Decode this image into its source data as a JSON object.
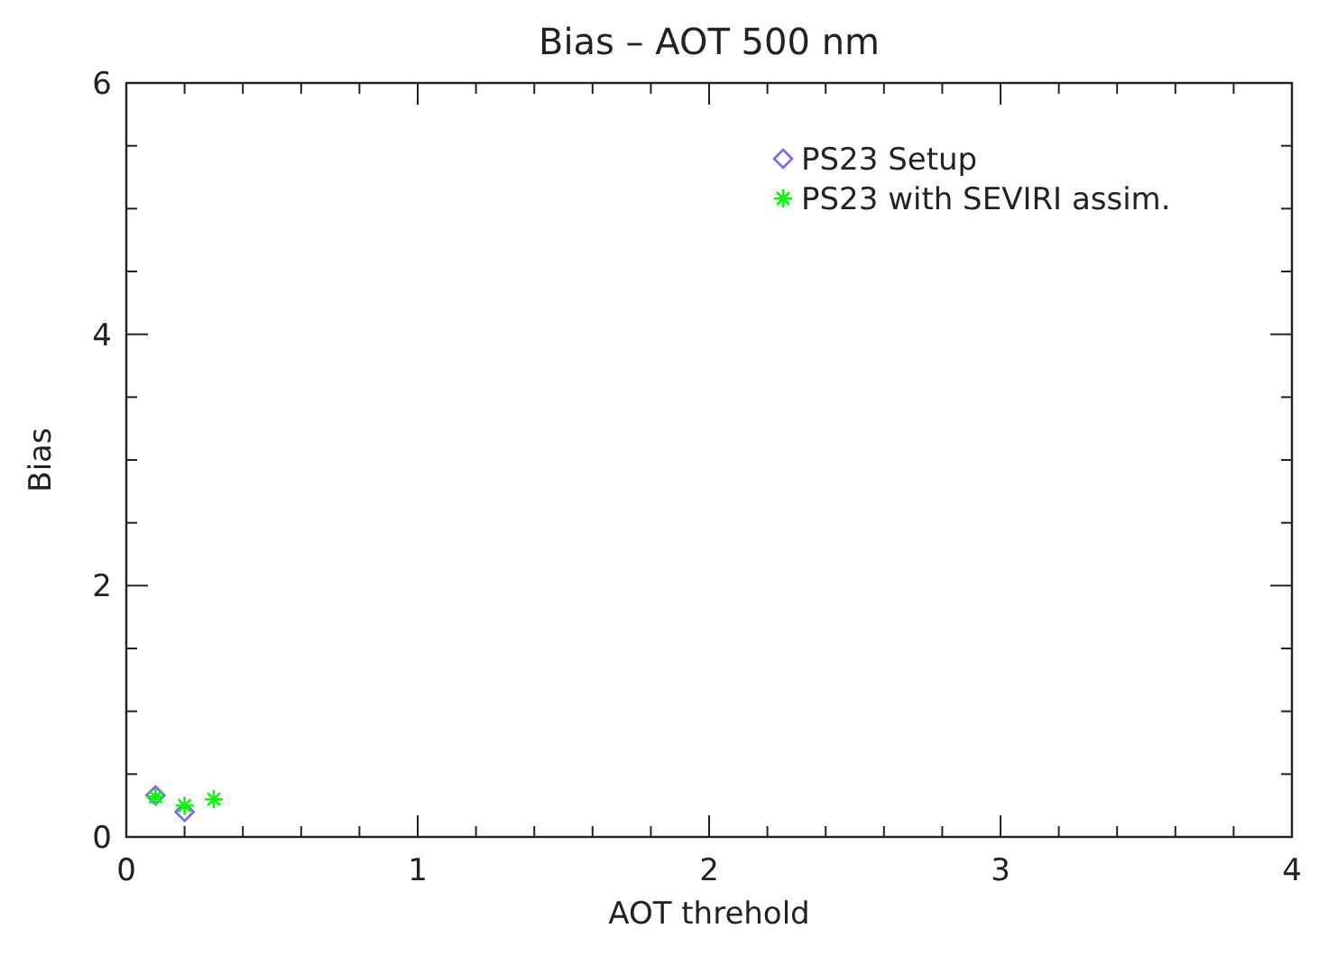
{
  "chart_data": {
    "type": "scatter",
    "title": "Bias – AOT 500 nm",
    "xlabel": "AOT threhold",
    "ylabel": "Bias",
    "xlim": [
      0,
      4
    ],
    "ylim": [
      0,
      6
    ],
    "xticks": [
      0,
      {
        "value": 0.2,
        "label": null
      },
      {
        "value": 0.4,
        "label": null
      },
      {
        "value": 0.6,
        "label": null
      },
      {
        "value": 0.8,
        "label": null
      },
      1,
      {
        "value": 1.2,
        "label": null
      },
      {
        "value": 1.4,
        "label": null
      },
      {
        "value": 1.6,
        "label": null
      },
      {
        "value": 1.8,
        "label": null
      },
      2,
      {
        "value": 2.2,
        "label": null
      },
      {
        "value": 2.4,
        "label": null
      },
      {
        "value": 2.6,
        "label": null
      },
      {
        "value": 2.8,
        "label": null
      },
      3,
      {
        "value": 3.2,
        "label": null
      },
      {
        "value": 3.4,
        "label": null
      },
      {
        "value": 3.6,
        "label": null
      },
      {
        "value": 3.8,
        "label": null
      },
      4
    ],
    "yticks": [
      0,
      {
        "value": 0.5,
        "label": null
      },
      {
        "value": 1,
        "label": null
      },
      {
        "value": 1.5,
        "label": null
      },
      2,
      {
        "value": 2.5,
        "label": null
      },
      {
        "value": 3,
        "label": null
      },
      {
        "value": 3.5,
        "label": null
      },
      4,
      {
        "value": 4.5,
        "label": null
      },
      {
        "value": 5,
        "label": null
      },
      {
        "value": 5.5,
        "label": null
      },
      6
    ],
    "legend": "top right",
    "grid": false,
    "series": [
      {
        "name": "PS23 Setup",
        "color": "#8060ff",
        "marker": "diamond",
        "x": [
          0.1,
          0.2
        ],
        "values": [
          0.33,
          0.2
        ]
      },
      {
        "name": "PS23 with SEVIRI assim.",
        "color": "#00ff00",
        "marker": "cross",
        "x": [
          0.1,
          0.2,
          0.3
        ],
        "values": [
          0.32,
          0.25,
          0.3
        ]
      }
    ]
  }
}
